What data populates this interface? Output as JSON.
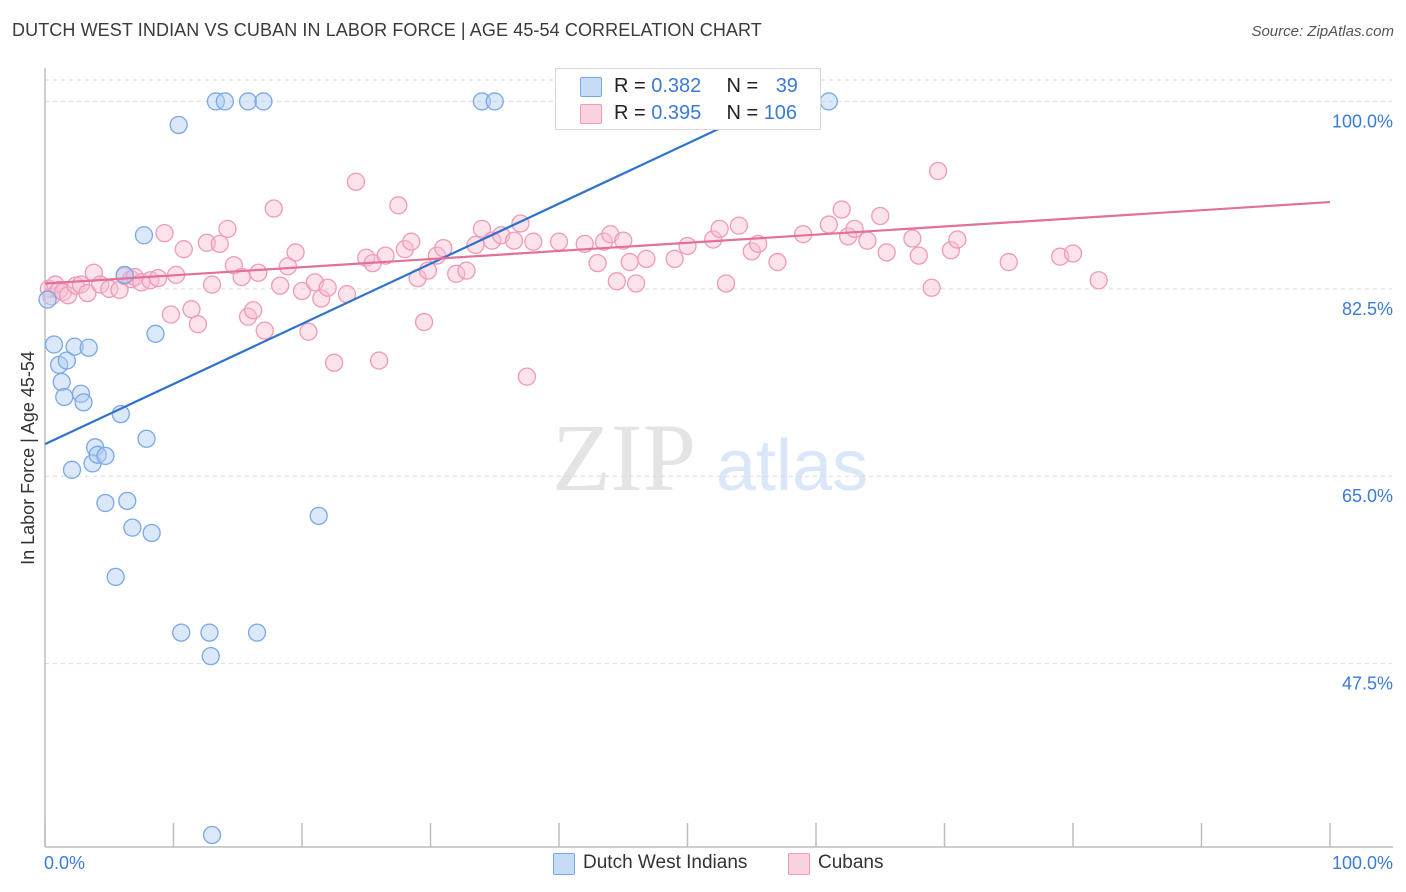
{
  "title": "DUTCH WEST INDIAN VS CUBAN IN LABOR FORCE | AGE 45-54 CORRELATION CHART",
  "source": "Source: ZipAtlas.com",
  "watermark": {
    "zip": "ZIP",
    "atlas": "atlas"
  },
  "colors": {
    "blue_fill": "#aecbf2",
    "blue_stroke": "#7aa8e6",
    "blue_line": "#2f72cc",
    "pink_fill": "#f7bfd2",
    "pink_stroke": "#ef9ab8",
    "pink_line": "#e3709a",
    "axis_text": "#3a7bd5",
    "grid": "#d9d9d9"
  },
  "legend_top": {
    "rows": [
      {
        "r_label": "R = ",
        "r_value": "0.382",
        "n_label": "N = ",
        "n_value": "39",
        "series": "blue"
      },
      {
        "r_label": "R = ",
        "r_value": "0.395",
        "n_label": "N = ",
        "n_value": "106",
        "series": "pink"
      }
    ]
  },
  "legend_bottom": {
    "items": [
      "Dutch West Indians",
      "Cubans"
    ]
  },
  "chart_data": {
    "type": "scatter",
    "title": "DUTCH WEST INDIAN VS CUBAN IN LABOR FORCE | AGE 45-54 CORRELATION CHART",
    "xlabel": "",
    "ylabel": "In Labor Force | Age 45-54",
    "xlim": [
      0,
      100
    ],
    "ylim": [
      31.5,
      102
    ],
    "x_tick_labels": [
      {
        "value": 0,
        "label": "0.0%"
      },
      {
        "value": 100,
        "label": "100.0%"
      }
    ],
    "y_ticks": [
      {
        "value": 100,
        "label": "100.0%"
      },
      {
        "value": 82.5,
        "label": "82.5%"
      },
      {
        "value": 65,
        "label": "65.0%"
      },
      {
        "value": 47.5,
        "label": "47.5%"
      }
    ],
    "series": [
      {
        "name": "Dutch West Indians",
        "color": "blue",
        "R": 0.382,
        "N": 39,
        "trend": {
          "x": [
            0,
            57
          ],
          "y": [
            68.0,
            100.0
          ]
        },
        "points": [
          [
            0.2,
            81.5
          ],
          [
            0.7,
            77.3
          ],
          [
            1.1,
            75.4
          ],
          [
            1.3,
            73.8
          ],
          [
            1.5,
            72.4
          ],
          [
            1.7,
            75.8
          ],
          [
            2.1,
            65.6
          ],
          [
            2.3,
            77.1
          ],
          [
            2.8,
            72.7
          ],
          [
            3.0,
            71.9
          ],
          [
            3.4,
            77.0
          ],
          [
            3.7,
            66.2
          ],
          [
            3.9,
            67.7
          ],
          [
            4.1,
            67.0
          ],
          [
            4.7,
            66.9
          ],
          [
            4.7,
            62.5
          ],
          [
            5.5,
            55.6
          ],
          [
            5.9,
            70.8
          ],
          [
            6.4,
            62.7
          ],
          [
            6.8,
            60.2
          ],
          [
            6.2,
            83.8
          ],
          [
            7.7,
            87.5
          ],
          [
            7.9,
            68.5
          ],
          [
            8.3,
            59.7
          ],
          [
            8.6,
            78.3
          ],
          [
            10.4,
            97.8
          ],
          [
            10.6,
            50.4
          ],
          [
            12.8,
            50.4
          ],
          [
            12.9,
            48.2
          ],
          [
            13.0,
            31.5
          ],
          [
            13.3,
            100
          ],
          [
            14.0,
            100
          ],
          [
            15.8,
            100
          ],
          [
            16.5,
            50.4
          ],
          [
            17.0,
            100
          ],
          [
            21.3,
            61.3
          ],
          [
            34.0,
            100
          ],
          [
            35.0,
            100
          ],
          [
            61.0,
            100
          ]
        ]
      },
      {
        "name": "Cubans",
        "color": "pink",
        "R": 0.395,
        "N": 106,
        "trend": {
          "x": [
            0,
            100
          ],
          "y": [
            83.0,
            90.6
          ]
        },
        "points": [
          [
            0.3,
            82.5
          ],
          [
            0.5,
            81.8
          ],
          [
            0.8,
            82.9
          ],
          [
            1.1,
            82.4
          ],
          [
            1.4,
            82.2
          ],
          [
            1.8,
            81.9
          ],
          [
            2.4,
            82.8
          ],
          [
            2.8,
            82.9
          ],
          [
            3.3,
            82.1
          ],
          [
            3.8,
            84.0
          ],
          [
            4.3,
            82.9
          ],
          [
            5.0,
            82.5
          ],
          [
            5.8,
            82.4
          ],
          [
            6.2,
            83.7
          ],
          [
            6.7,
            83.4
          ],
          [
            7.0,
            83.6
          ],
          [
            7.5,
            83.1
          ],
          [
            8.2,
            83.3
          ],
          [
            8.8,
            83.5
          ],
          [
            9.3,
            87.7
          ],
          [
            9.8,
            80.1
          ],
          [
            10.2,
            83.8
          ],
          [
            10.8,
            86.2
          ],
          [
            11.4,
            80.6
          ],
          [
            11.9,
            79.2
          ],
          [
            12.6,
            86.8
          ],
          [
            13.0,
            82.9
          ],
          [
            13.6,
            86.7
          ],
          [
            14.2,
            88.1
          ],
          [
            14.7,
            84.7
          ],
          [
            15.3,
            83.6
          ],
          [
            15.8,
            79.9
          ],
          [
            16.2,
            80.5
          ],
          [
            16.6,
            84.0
          ],
          [
            17.1,
            78.6
          ],
          [
            17.8,
            90.0
          ],
          [
            18.3,
            82.8
          ],
          [
            18.9,
            84.6
          ],
          [
            19.5,
            85.9
          ],
          [
            20.0,
            82.3
          ],
          [
            20.5,
            78.5
          ],
          [
            21.0,
            83.1
          ],
          [
            21.5,
            81.6
          ],
          [
            22.0,
            82.6
          ],
          [
            22.5,
            75.6
          ],
          [
            23.5,
            82.0
          ],
          [
            24.2,
            92.5
          ],
          [
            25.0,
            85.4
          ],
          [
            25.5,
            84.9
          ],
          [
            26.0,
            75.8
          ],
          [
            26.5,
            85.6
          ],
          [
            27.5,
            90.3
          ],
          [
            28.0,
            86.2
          ],
          [
            28.5,
            86.9
          ],
          [
            29.0,
            83.5
          ],
          [
            29.5,
            79.4
          ],
          [
            29.8,
            84.2
          ],
          [
            30.5,
            85.6
          ],
          [
            31.0,
            86.3
          ],
          [
            32.0,
            83.9
          ],
          [
            32.8,
            84.2
          ],
          [
            33.5,
            86.6
          ],
          [
            34.0,
            88.1
          ],
          [
            34.8,
            87.0
          ],
          [
            35.5,
            87.5
          ],
          [
            36.5,
            87.0
          ],
          [
            37.0,
            88.6
          ],
          [
            37.5,
            74.3
          ],
          [
            38.0,
            86.9
          ],
          [
            40.0,
            86.9
          ],
          [
            42.0,
            86.7
          ],
          [
            43.0,
            84.9
          ],
          [
            43.5,
            86.9
          ],
          [
            44.0,
            87.6
          ],
          [
            44.5,
            83.2
          ],
          [
            45.0,
            87.0
          ],
          [
            45.5,
            85.0
          ],
          [
            46.0,
            83.0
          ],
          [
            46.8,
            85.3
          ],
          [
            49.0,
            85.3
          ],
          [
            50.0,
            86.5
          ],
          [
            52.0,
            87.1
          ],
          [
            52.5,
            88.1
          ],
          [
            53.0,
            83.0
          ],
          [
            54.0,
            88.4
          ],
          [
            55.0,
            86.0
          ],
          [
            55.5,
            86.7
          ],
          [
            57.0,
            85.0
          ],
          [
            59.0,
            87.6
          ],
          [
            61.0,
            88.5
          ],
          [
            62.0,
            89.9
          ],
          [
            62.5,
            87.4
          ],
          [
            63.0,
            88.1
          ],
          [
            64.0,
            87.0
          ],
          [
            65.0,
            89.3
          ],
          [
            65.5,
            85.9
          ],
          [
            67.5,
            87.2
          ],
          [
            68.0,
            85.6
          ],
          [
            69.0,
            82.6
          ],
          [
            69.5,
            93.5
          ],
          [
            70.5,
            86.1
          ],
          [
            71.0,
            87.1
          ],
          [
            75.0,
            85.0
          ],
          [
            79.0,
            85.5
          ],
          [
            80.0,
            85.8
          ],
          [
            82.0,
            83.3
          ]
        ]
      }
    ]
  }
}
